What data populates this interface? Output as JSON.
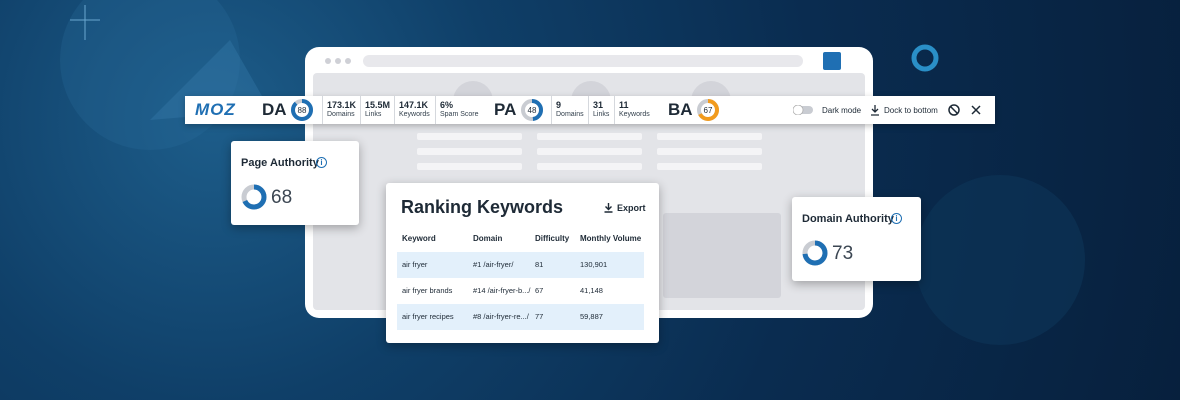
{
  "toolbar": {
    "logo": "MOZ",
    "da": {
      "label": "DA",
      "value": 88,
      "color": "#1f6fb3",
      "metrics": [
        {
          "value": "173.1K",
          "label": "Domains"
        },
        {
          "value": "15.5M",
          "label": "Links"
        },
        {
          "value": "147.1K",
          "label": "Keywords"
        },
        {
          "value": "6%",
          "label": "Spam Score"
        }
      ]
    },
    "pa": {
      "label": "PA",
      "value": 48,
      "color": "#1f6fb3",
      "metrics": [
        {
          "value": "9",
          "label": "Domains"
        },
        {
          "value": "31",
          "label": "Links"
        },
        {
          "value": "11",
          "label": "Keywords"
        }
      ]
    },
    "ba": {
      "label": "BA",
      "value": 67,
      "color": "#f29b1d"
    },
    "dark_mode": "Dark mode",
    "dock": "Dock to bottom"
  },
  "page_authority": {
    "title": "Page Authority",
    "value": 68,
    "color": "#1f6fb3"
  },
  "domain_authority": {
    "title": "Domain Authority",
    "value": 73,
    "color": "#1f6fb3"
  },
  "ranking_keywords": {
    "title": "Ranking Keywords",
    "export": "Export",
    "columns": [
      "Keyword",
      "Domain",
      "Difficulty",
      "Monthly Volume"
    ],
    "rows": [
      [
        "air fryer",
        "#1 /air-fryer/",
        81,
        "130,901"
      ],
      [
        "air fryer brands",
        "#14 /air-fryer-b.../",
        67,
        "41,148"
      ],
      [
        "air fryer recipes",
        "#8 /air-fryer-re.../",
        77,
        "59,887"
      ]
    ]
  }
}
